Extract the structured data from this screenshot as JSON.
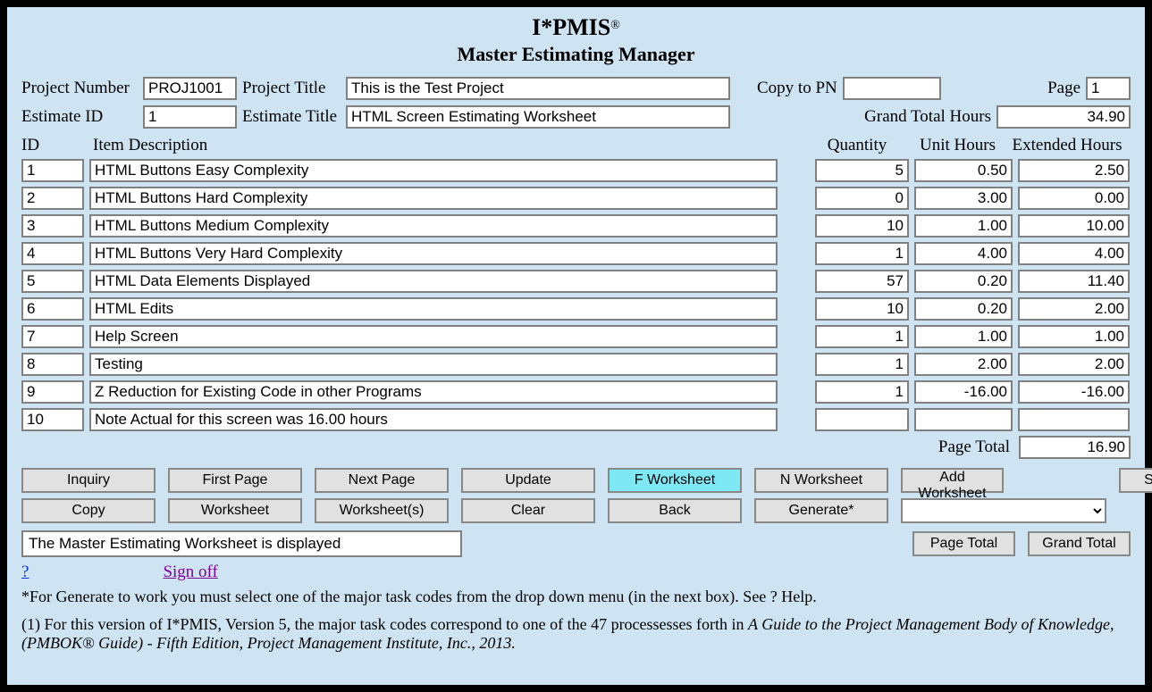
{
  "header": {
    "app_name": "I*PMIS",
    "reg_mark": "®",
    "subtitle": "Master Estimating Manager"
  },
  "labels": {
    "project_number": "Project Number",
    "project_title": "Project Title",
    "copy_to_pn": "Copy to PN",
    "page": "Page",
    "estimate_id": "Estimate ID",
    "estimate_title": "Estimate Title",
    "grand_total_hours": "Grand Total Hours",
    "id": "ID",
    "item_description": "Item Description",
    "quantity": "Quantity",
    "unit_hours": "Unit Hours",
    "extended_hours": "Extended Hours",
    "page_total": "Page Total"
  },
  "fields": {
    "project_number": "PROJ1001",
    "project_title": "This is the Test Project",
    "copy_to_pn": "",
    "page": "1",
    "estimate_id": "1",
    "estimate_title": "HTML Screen Estimating Worksheet",
    "grand_total_hours": "34.90",
    "page_total": "16.90",
    "status": "The Master Estimating Worksheet is displayed"
  },
  "rows": [
    {
      "id": "1",
      "desc": "HTML Buttons Easy Complexity",
      "qty": "5",
      "unit": "0.50",
      "ext": "2.50"
    },
    {
      "id": "2",
      "desc": "HTML Buttons Hard Complexity",
      "qty": "0",
      "unit": "3.00",
      "ext": "0.00"
    },
    {
      "id": "3",
      "desc": "HTML Buttons Medium Complexity",
      "qty": "10",
      "unit": "1.00",
      "ext": "10.00"
    },
    {
      "id": "4",
      "desc": "HTML Buttons Very Hard Complexity",
      "qty": "1",
      "unit": "4.00",
      "ext": "4.00"
    },
    {
      "id": "5",
      "desc": "HTML Data Elements Displayed",
      "qty": "57",
      "unit": "0.20",
      "ext": "11.40"
    },
    {
      "id": "6",
      "desc": "HTML Edits",
      "qty": "10",
      "unit": "0.20",
      "ext": "2.00"
    },
    {
      "id": "7",
      "desc": "Help Screen",
      "qty": "1",
      "unit": "1.00",
      "ext": "1.00"
    },
    {
      "id": "8",
      "desc": "Testing",
      "qty": "1",
      "unit": "2.00",
      "ext": "2.00"
    },
    {
      "id": "9",
      "desc": "Z Reduction for Existing Code in other Programs",
      "qty": "1",
      "unit": "-16.00",
      "ext": "-16.00"
    },
    {
      "id": "10",
      "desc": "Note Actual for this screen was 16.00 hours",
      "qty": "",
      "unit": "",
      "ext": ""
    }
  ],
  "buttons": {
    "inquiry": "Inquiry",
    "first_page": "First Page",
    "next_page": "Next Page",
    "update": "Update",
    "f_worksheet": "F Worksheet",
    "n_worksheet": "N Worksheet",
    "add_worksheet": "Add Worksheet",
    "sort_list": "Sort List",
    "copy": "Copy",
    "worksheet": "Worksheet",
    "worksheets": "Worksheet(s)",
    "clear": "Clear",
    "back": "Back",
    "generate": "Generate*",
    "page_total_btn": "Page Total",
    "grand_total_btn": "Grand Total"
  },
  "links": {
    "help": "?",
    "signoff": "Sign off"
  },
  "footnote": "*For Generate to work you must select one of the major task codes from the drop down menu (in the next box). See ? Help.",
  "reference_prefix": "(1) For this version of I*PMIS, Version 5, the major task codes correspond to one of the 47 processesses forth in ",
  "reference_italic": "A Guide to the Project Management Body of Knowledge,(PMBOK® Guide) - Fifth Edition, Project Management Institute, Inc., 2013.",
  "style": {
    "bg_page": "#cfe4f3",
    "bg_frame": "#000000",
    "input_border": "#808080",
    "button_bg": "#e1e1e1",
    "button_active_bg": "#7fe8f5",
    "link_help": "#0033cc",
    "link_signoff": "#7b0099"
  }
}
